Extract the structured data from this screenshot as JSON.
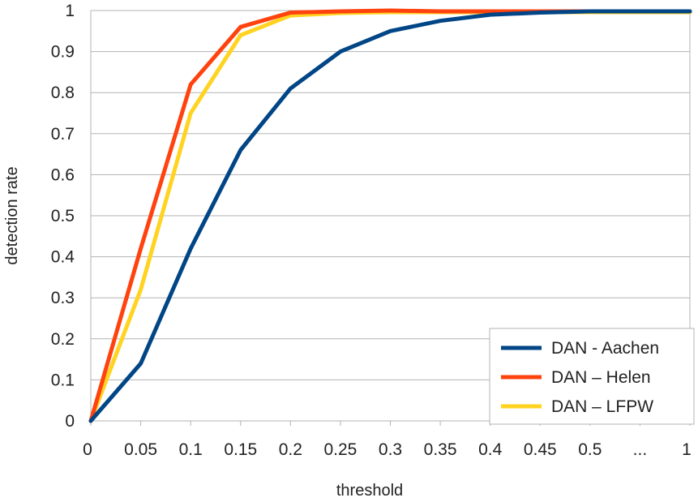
{
  "chart_data": {
    "type": "line",
    "title": "",
    "xlabel": "threshold",
    "ylabel": "detection rate",
    "x_tick_labels": [
      "0",
      "0.05",
      "0.1",
      "0.15",
      "0.2",
      "0.25",
      "0.3",
      "0.35",
      "0.4",
      "0.45",
      "0.5",
      "...",
      "1"
    ],
    "y_tick_labels": [
      "0",
      "0.1",
      "0.2",
      "0.3",
      "0.4",
      "0.5",
      "0.6",
      "0.7",
      "0.8",
      "0.9",
      "1"
    ],
    "ylim": [
      0,
      1
    ],
    "grid": "horizontal",
    "legend_position": "bottom-right",
    "series": [
      {
        "name": "DAN - Aachen",
        "color": "#004586",
        "values": [
          0,
          0.14,
          0.42,
          0.66,
          0.81,
          0.9,
          0.95,
          0.975,
          0.99,
          0.995,
          0.998,
          0.998,
          0.998
        ]
      },
      {
        "name": "DAN – Helen",
        "color": "#ff420e",
        "values": [
          0,
          0.42,
          0.82,
          0.96,
          0.995,
          0.998,
          1.0,
          0.998,
          0.998,
          0.998,
          0.998,
          0.998,
          0.998
        ]
      },
      {
        "name": "DAN – LFPW",
        "color": "#ffd320",
        "values": [
          0,
          0.32,
          0.75,
          0.94,
          0.988,
          0.994,
          0.996,
          0.996,
          0.996,
          0.996,
          0.996,
          0.996,
          0.996
        ]
      }
    ]
  }
}
